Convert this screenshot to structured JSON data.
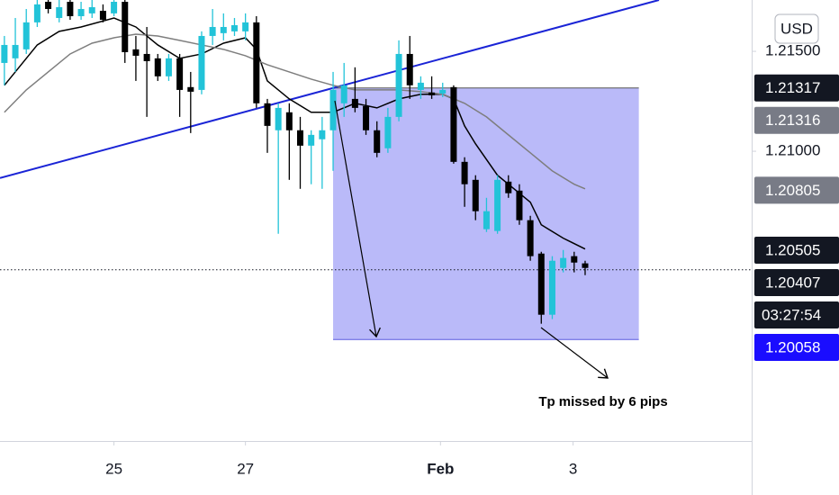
{
  "chart_data": {
    "type": "candlestick",
    "x": [
      0,
      1,
      2,
      3,
      4,
      5,
      6,
      7,
      8,
      9,
      10,
      11,
      12,
      13,
      14,
      15,
      16,
      17,
      18,
      19,
      20,
      21,
      22,
      23,
      24,
      25,
      26,
      27,
      28,
      29,
      30,
      31,
      32,
      33,
      34,
      35,
      36,
      37,
      38,
      39,
      40,
      41,
      42,
      43,
      44,
      45,
      46,
      47,
      48,
      49,
      50,
      51,
      52,
      53
    ],
    "open": [
      1.21442,
      1.21465,
      1.2151,
      1.21645,
      1.21748,
      1.21667,
      1.21748,
      1.21676,
      1.2169,
      1.21703,
      1.2169,
      1.21748,
      1.2151,
      1.21487,
      1.21465,
      1.21375,
      1.21465,
      1.21321,
      1.21307,
      1.21577,
      1.21591,
      1.216,
      1.216,
      1.21645,
      1.2124,
      1.21105,
      1.21195,
      1.21105,
      1.21028,
      1.2106,
      1.21105,
      1.2124,
      1.21262,
      1.21226,
      1.21105,
      1.21015,
      1.21172,
      1.21487,
      1.21307,
      1.21294,
      1.21289,
      1.21321,
      1.20947,
      1.20857,
      1.2061,
      1.20601,
      1.20848,
      1.20803,
      1.20655,
      1.20488,
      1.20182,
      1.20416,
      1.20475,
      1.20439
    ],
    "high": [
      1.21577,
      1.21667,
      1.21712,
      1.21757,
      1.21757,
      1.21757,
      1.21757,
      1.21748,
      1.21757,
      1.21735,
      1.21757,
      1.21757,
      1.21577,
      1.21622,
      1.21487,
      1.21487,
      1.21487,
      1.21397,
      1.216,
      1.21712,
      1.2169,
      1.21667,
      1.2169,
      1.21676,
      1.21262,
      1.2124,
      1.2124,
      1.21172,
      1.21105,
      1.21172,
      1.21397,
      1.21442,
      1.2142,
      1.21262,
      1.2115,
      1.21217,
      1.21555,
      1.21577,
      1.21375,
      1.21375,
      1.21343,
      1.2133,
      1.2097,
      1.2088,
      1.20767,
      1.2088,
      1.2088,
      1.20835,
      1.20677,
      1.20497,
      1.20475,
      1.20506,
      1.20497,
      1.20452
    ],
    "low": [
      1.2133,
      1.21397,
      1.21487,
      1.21622,
      1.2169,
      1.21645,
      1.21658,
      1.21658,
      1.21667,
      1.21645,
      1.21676,
      1.21442,
      1.21352,
      1.21172,
      1.21352,
      1.21352,
      1.21172,
      1.21091,
      1.21285,
      1.21532,
      1.21555,
      1.21577,
      1.21555,
      1.21217,
      1.20992,
      1.20587,
      1.20857,
      1.20812,
      1.20835,
      1.20812,
      1.20902,
      1.21172,
      1.21195,
      1.21082,
      1.2097,
      1.20992,
      1.2115,
      1.21262,
      1.21262,
      1.21262,
      1.21271,
      1.20938,
      1.20722,
      1.20655,
      1.20596,
      1.20587,
      1.20767,
      1.20632,
      1.20452,
      1.20137,
      1.2016,
      1.20394,
      1.20394,
      1.2038
    ],
    "close": [
      1.21532,
      1.21532,
      1.21645,
      1.21735,
      1.21712,
      1.21721,
      1.21676,
      1.21712,
      1.21721,
      1.21658,
      1.21748,
      1.21496,
      1.21478,
      1.21451,
      1.21375,
      1.21465,
      1.21307,
      1.21298,
      1.21577,
      1.21622,
      1.21622,
      1.21631,
      1.21645,
      1.2124,
      1.21127,
      1.21217,
      1.21105,
      1.21028,
      1.21082,
      1.21105,
      1.21307,
      1.2133,
      1.21217,
      1.21105,
      1.20992,
      1.21172,
      1.21487,
      1.2133,
      1.21343,
      1.2128,
      1.21307,
      1.20947,
      1.20835,
      1.207,
      1.207,
      1.20857,
      1.2079,
      1.20655,
      1.20475,
      1.20182,
      1.20452,
      1.20466,
      1.20443,
      1.20416
    ],
    "up_color": "#22c3d8",
    "down_color": "#000000",
    "overlays": [
      {
        "color": "#000000",
        "x": [
          0,
          3,
          5,
          7,
          10,
          12,
          14,
          16,
          18,
          20,
          22,
          23,
          24,
          26,
          28,
          30,
          32,
          34,
          36,
          38,
          40,
          41,
          42,
          43,
          45,
          47,
          48,
          49,
          51,
          53
        ],
        "values": [
          1.2133,
          1.21532,
          1.216,
          1.21622,
          1.21667,
          1.21622,
          1.21532,
          1.21465,
          1.21487,
          1.21541,
          1.21568,
          1.2151,
          1.21352,
          1.21262,
          1.21195,
          1.21195,
          1.2124,
          1.21217,
          1.21262,
          1.21285,
          1.21285,
          1.21262,
          1.21127,
          1.21037,
          1.2088,
          1.2079,
          1.20745,
          1.20632,
          1.20565,
          1.20511
        ]
      },
      {
        "color": "#7e7e7e",
        "x": [
          0,
          2,
          4,
          6,
          8,
          10,
          12,
          14,
          16,
          18,
          20,
          22,
          24,
          26,
          28,
          30,
          32,
          34,
          36,
          38,
          40,
          42,
          44,
          46,
          48,
          50,
          52,
          53
        ],
        "values": [
          1.21195,
          1.21307,
          1.21397,
          1.21487,
          1.21541,
          1.21568,
          1.21586,
          1.21577,
          1.21555,
          1.21532,
          1.2151,
          1.21478,
          1.21433,
          1.21397,
          1.21361,
          1.2133,
          1.21307,
          1.21307,
          1.21307,
          1.21298,
          1.21285,
          1.2124,
          1.21172,
          1.21082,
          1.20992,
          1.20902,
          1.20835,
          1.20812
        ]
      }
    ],
    "trendline": {
      "color": "#1a24d6",
      "x": [
        -0.4,
        59.74
      ],
      "values": [
        1.20866,
        1.21757
      ]
    },
    "range_box": {
      "color": "#8c8cf5",
      "x": [
        30.0,
        57.9
      ],
      "values": [
        1.21317,
        1.20058
      ]
    },
    "current_price": 1.20407,
    "xlim": [
      -0.4,
      68.2
    ],
    "ylim": [
      1.1955,
      1.21757
    ],
    "xticks": [
      {
        "value": 10,
        "label": "25"
      },
      {
        "value": 22,
        "label": "27"
      },
      {
        "value": 39.8,
        "label": "Feb"
      },
      {
        "value": 51.9,
        "label": "3"
      }
    ],
    "yticks": [
      {
        "value": 1.215,
        "label": "1.21500"
      },
      {
        "value": 1.21,
        "label": "1.21000"
      }
    ],
    "currency": "USD",
    "price_tags": [
      {
        "value": 1.21317,
        "label": "1.21317",
        "color": "#131722"
      },
      {
        "value": 1.21316,
        "label": "1.21316",
        "color": "#787b86"
      },
      {
        "value": 1.20805,
        "label": "1.20805",
        "color": "#787b86"
      },
      {
        "value": 1.20505,
        "label": "1.20505",
        "color": "#131722"
      },
      {
        "value": 1.20407,
        "label": "1.20407",
        "color": "#131722",
        "countdown": "03:27:54"
      },
      {
        "value": 1.20058,
        "label": "1.20058",
        "color": "#1a0dff"
      }
    ],
    "annotation": "Tp missed by 6 pips"
  }
}
